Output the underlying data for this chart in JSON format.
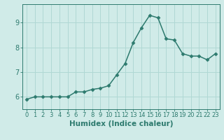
{
  "x": [
    0,
    1,
    2,
    3,
    4,
    5,
    6,
    7,
    8,
    9,
    10,
    11,
    12,
    13,
    14,
    15,
    16,
    17,
    18,
    19,
    20,
    21,
    22,
    23
  ],
  "y": [
    5.9,
    6.0,
    6.0,
    6.0,
    6.0,
    6.0,
    6.2,
    6.2,
    6.3,
    6.35,
    6.45,
    6.9,
    7.35,
    8.2,
    8.8,
    9.3,
    9.2,
    8.35,
    8.3,
    7.75,
    7.65,
    7.65,
    7.5,
    7.75
  ],
  "line_color": "#2d7a6e",
  "marker": "D",
  "marker_size": 2.5,
  "bg_color": "#d0ebe8",
  "grid_color": "#b0d8d4",
  "xlabel": "Humidex (Indice chaleur)",
  "ylim": [
    5.5,
    9.75
  ],
  "xlim": [
    -0.5,
    23.5
  ],
  "yticks": [
    6,
    7,
    8,
    9
  ],
  "xticks": [
    0,
    1,
    2,
    3,
    4,
    5,
    6,
    7,
    8,
    9,
    10,
    11,
    12,
    13,
    14,
    15,
    16,
    17,
    18,
    19,
    20,
    21,
    22,
    23
  ],
  "tick_color": "#2d7a6e",
  "label_color": "#2d7a6e",
  "font_size_xlabel": 7.5,
  "font_size_xtick": 6.0,
  "font_size_ytick": 7.0,
  "linewidth": 1.1
}
